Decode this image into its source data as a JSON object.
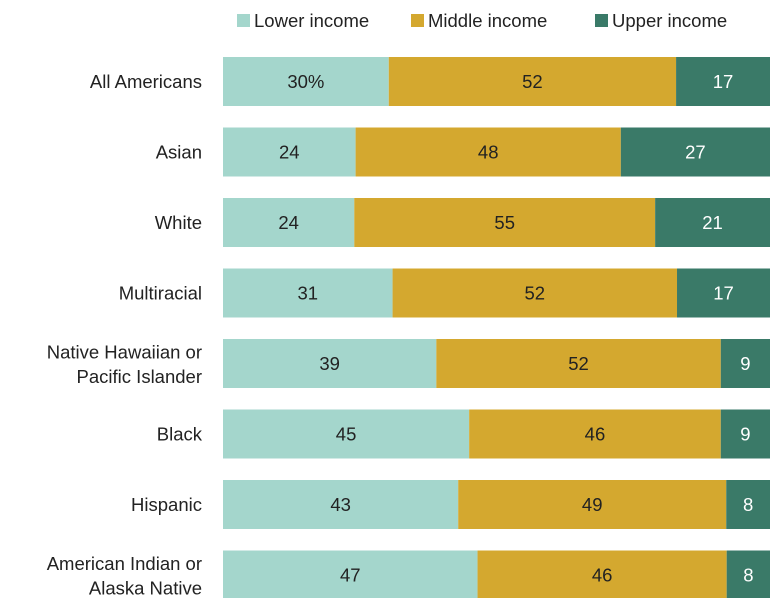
{
  "chart_data": {
    "type": "bar",
    "orientation": "horizontal",
    "stacked": true,
    "categories": [
      [
        "All Americans"
      ],
      [
        "Asian"
      ],
      [
        "White"
      ],
      [
        "Multiracial"
      ],
      [
        "Native Hawaiian or",
        "Pacific Islander"
      ],
      [
        "Black"
      ],
      [
        "Hispanic"
      ],
      [
        "American Indian or",
        "Alaska Native"
      ]
    ],
    "series": [
      {
        "name": "Lower income",
        "color": "#a4d6cc",
        "label_color": "#222222",
        "values": [
          30,
          24,
          24,
          31,
          39,
          45,
          43,
          47
        ]
      },
      {
        "name": "Middle income",
        "color": "#d4a82f",
        "label_color": "#222222",
        "values": [
          52,
          48,
          55,
          52,
          52,
          46,
          49,
          46
        ]
      },
      {
        "name": "Upper income",
        "color": "#3a7a68",
        "label_color": "#ffffff",
        "values": [
          17,
          27,
          21,
          17,
          9,
          9,
          8,
          8
        ]
      }
    ],
    "data_labels": [
      [
        "30%",
        "52",
        "17"
      ],
      [
        "24",
        "48",
        "27"
      ],
      [
        "24",
        "55",
        "21"
      ],
      [
        "31",
        "52",
        "17"
      ],
      [
        "39",
        "52",
        "9"
      ],
      [
        "45",
        "46",
        "9"
      ],
      [
        "43",
        "49",
        "8"
      ],
      [
        "47",
        "46",
        "8"
      ]
    ],
    "legend_position": "top",
    "grid": false
  }
}
